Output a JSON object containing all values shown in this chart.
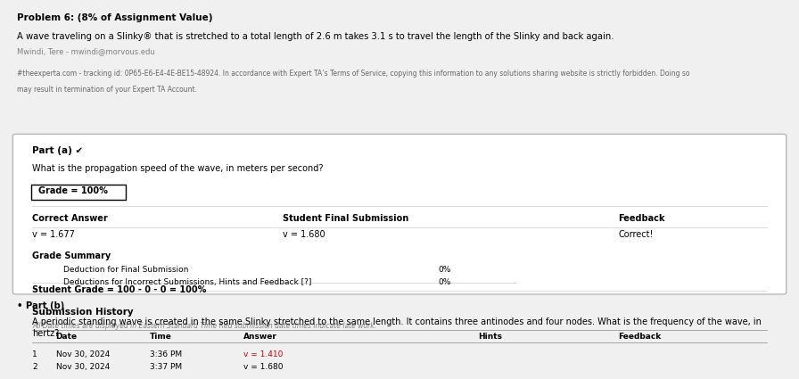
{
  "bg_color": "#f0f0f0",
  "panel_bg": "#ffffff",
  "title_line1": "Problem 6: (8% of Assignment Value)",
  "title_line2": "A wave traveling on a Slinky® that is stretched to a total length of 2.6 m takes 3.1 s to travel the length of the Slinky and back again.",
  "title_line3": "Mwindi, Tere - mwindi@morvous.edu",
  "watermark_line1": "#theexperta.com - tracking id: 0P65-E6-E4-4E-BE15-48924. In accordance with Expert TA’s Terms of Service, copying this information to any solutions sharing website is strictly forbidden. Doing so",
  "watermark_line2": "may result in termination of your Expert TA Account.",
  "part_a_header": "Part (a) ✔",
  "part_a_question": "What is the propagation speed of the wave, in meters per second?",
  "grade_box": "Grade = 100%",
  "col_correct": "Correct Answer",
  "col_student": "Student Final Submission",
  "col_feedback": "Feedback",
  "correct_answer": "v = 1.677",
  "student_answer": "v = 1.680",
  "feedback_text": "Correct!",
  "grade_summary_title": "Grade Summary",
  "deduction1_label": "Deduction for Final Submission",
  "deduction1_val": "0%",
  "deduction2_label": "Deductions for Incorrect Submissions, Hints and Feedback [?]",
  "deduction2_val": "0%",
  "student_grade_line": "Student Grade = 100 - 0 - 0 = 100%",
  "submission_history_title": "Submission History",
  "submission_note": "All Date times are displayed in Eastern Standard Time Red submission date times indicate late work.",
  "sub_col1": "Date",
  "sub_col2": "Time",
  "sub_col3": "Answer",
  "sub_col4": "Hints",
  "sub_col5": "Feedback",
  "submissions": [
    [
      "1",
      "Nov 30, 2024",
      "3:36 PM",
      "v = 1.410"
    ],
    [
      "2",
      "Nov 30, 2024",
      "3:37 PM",
      "v = 1.680"
    ]
  ],
  "part_b_header": "• Part (b)",
  "part_b_text": "A periodic standing wave is created in the same Slinky stretched to the same length. It contains three antinodes and four nodes. What is the frequency of the wave, in",
  "part_b_text2": "hertz?"
}
